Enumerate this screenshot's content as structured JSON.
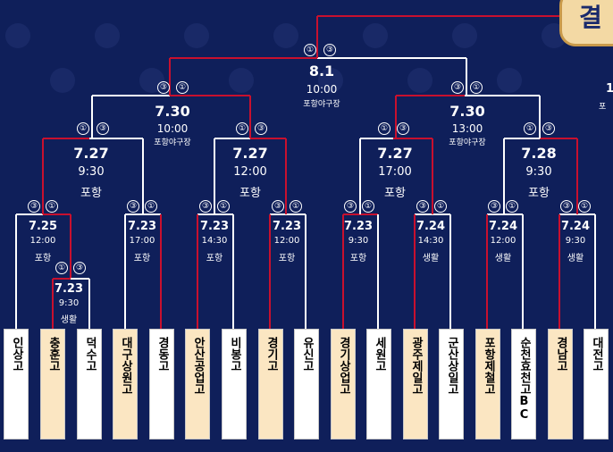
{
  "header": {
    "badge_text": "결",
    "edge_notes": {
      "right_peek_1": "포",
      "right_peek_2": "1"
    }
  },
  "colors": {
    "background": "#0f1f5a",
    "line_winner": "#c8102e",
    "line_other": "#ffffff",
    "team_highlight": "#fbe6c2",
    "team_plain": "#ffffff",
    "badge": "#f3d9a4"
  },
  "final": {
    "date": "8.1",
    "time": "10:00",
    "venue": "포항야구장",
    "score_left": "①",
    "score_right": "③"
  },
  "semifinals": [
    {
      "date": "7.30",
      "time": "10:00",
      "venue": "포항야구장",
      "score_left": "③",
      "score_right": "①"
    },
    {
      "date": "7.30",
      "time": "13:00",
      "venue": "포항야구장",
      "score_left": "③",
      "score_right": "①"
    }
  ],
  "quarterfinals": [
    {
      "date": "7.27",
      "time": "9:30",
      "venue": "포항",
      "score_left": "①",
      "score_right": "③"
    },
    {
      "date": "7.27",
      "time": "12:00",
      "venue": "포항",
      "score_left": "①",
      "score_right": "③"
    },
    {
      "date": "7.27",
      "time": "17:00",
      "venue": "포항",
      "score_left": "①",
      "score_right": "③"
    },
    {
      "date": "7.28",
      "time": "9:30",
      "venue": "포항",
      "score_left": "①",
      "score_right": "③"
    }
  ],
  "round16": [
    {
      "date": "7.25",
      "time": "12:00",
      "venue": "포항",
      "score_left": "③",
      "score_right": "①"
    },
    {
      "date": "7.23",
      "time": "17:00",
      "venue": "포항",
      "score_left": "③",
      "score_right": "①"
    },
    {
      "date": "7.23",
      "time": "14:30",
      "venue": "포항",
      "score_left": "③",
      "score_right": "①"
    },
    {
      "date": "7.23",
      "time": "12:00",
      "venue": "포항",
      "score_left": "③",
      "score_right": "①"
    },
    {
      "date": "7.23",
      "time": "9:30",
      "venue": "포항",
      "score_left": "③",
      "score_right": "①"
    },
    {
      "date": "7.24",
      "time": "14:30",
      "venue": "생활",
      "score_left": "③",
      "score_right": "①"
    },
    {
      "date": "7.24",
      "time": "12:00",
      "venue": "생활",
      "score_left": "③",
      "score_right": "①"
    },
    {
      "date": "7.24",
      "time": "9:30",
      "venue": "생활",
      "score_left": "③",
      "score_right": "①"
    }
  ],
  "preliminary": {
    "date": "7.23",
    "time": "9:30",
    "venue": "생활",
    "score_left": "①",
    "score_right": "③"
  },
  "teams": [
    {
      "name": "인상고",
      "highlight": false
    },
    {
      "name": "충훈고",
      "highlight": true
    },
    {
      "name": "덕수고",
      "highlight": false
    },
    {
      "name": "대구상원고",
      "highlight": true
    },
    {
      "name": "경동고",
      "highlight": false
    },
    {
      "name": "안산공업고",
      "highlight": true
    },
    {
      "name": "비봉고",
      "highlight": false
    },
    {
      "name": "경기고",
      "highlight": true
    },
    {
      "name": "유신고",
      "highlight": false
    },
    {
      "name": "경기상업고",
      "highlight": true
    },
    {
      "name": "세원고",
      "highlight": false
    },
    {
      "name": "광주제일고",
      "highlight": true
    },
    {
      "name": "군산상일고",
      "highlight": false
    },
    {
      "name": "포항제철고",
      "highlight": true
    },
    {
      "name": "순천효천고BC",
      "highlight": false
    },
    {
      "name": "경남고",
      "highlight": true
    },
    {
      "name": "대전고",
      "highlight": false
    }
  ]
}
